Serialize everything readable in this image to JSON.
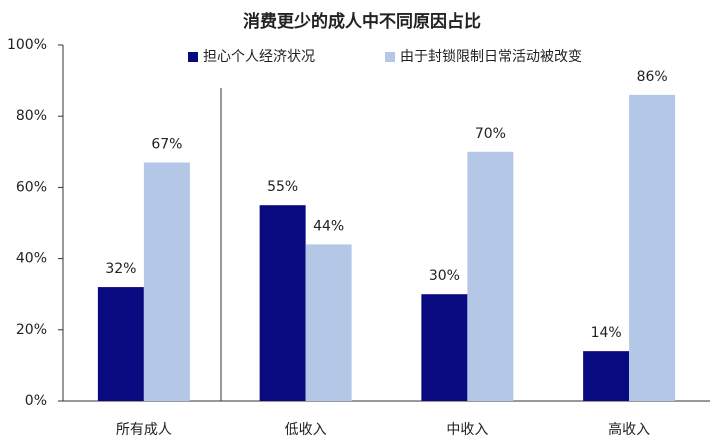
{
  "chart_data": {
    "type": "bar",
    "title": "消费更少的成人中不同原因占比",
    "categories": [
      "所有成人",
      "低收入",
      "中收入",
      "高收入"
    ],
    "series": [
      {
        "name": "担心个人经济状况",
        "color": "#0a0a80",
        "values": [
          32,
          55,
          30,
          14
        ],
        "value_labels": [
          "32%",
          "55%",
          "30%",
          "14%"
        ]
      },
      {
        "name": "由于封锁限制日常活动被改变",
        "color": "#b4c7e7",
        "values": [
          67,
          44,
          70,
          86
        ],
        "value_labels": [
          "67%",
          "44%",
          "70%",
          "86%"
        ]
      }
    ],
    "ylim": [
      0,
      100
    ],
    "yticks": [
      {
        "value": 0,
        "label": "0%"
      },
      {
        "value": 20,
        "label": "20%"
      },
      {
        "value": 40,
        "label": "40%"
      },
      {
        "value": 60,
        "label": "60%"
      },
      {
        "value": 80,
        "label": "80%"
      },
      {
        "value": 100,
        "label": "100%"
      }
    ],
    "grid": false,
    "legend": "top"
  }
}
